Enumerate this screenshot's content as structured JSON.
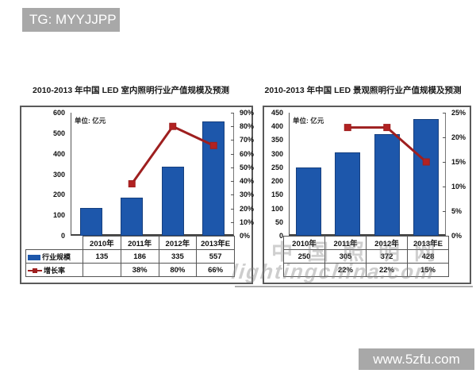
{
  "badges": {
    "top_left": "TG: MYYJJPP",
    "bottom_right": "www.5zfu.com",
    "bg": "#a8a8a8",
    "text_color": "#ffffff"
  },
  "watermark": {
    "line1": "中国照明网",
    "line2": "lightingchina.com"
  },
  "colors": {
    "bar": "#1d57ab",
    "line": "#9e1f1f",
    "line_marker": "#b22222",
    "badge_bg": "#a8a8a8"
  },
  "chart_data": [
    {
      "type": "bar",
      "title": "2010-2013 年中国 LED 室内照明行业产值规模及预测",
      "unit_label": "单位: 亿元",
      "categories": [
        "2010年",
        "2011年",
        "2012年",
        "2013年E"
      ],
      "series": [
        {
          "name": "行业规模",
          "type": "bar",
          "axis": "left",
          "values": [
            135,
            186,
            335,
            557
          ],
          "display": [
            "135",
            "186",
            "335",
            "557"
          ]
        },
        {
          "name": "增长率",
          "type": "line",
          "axis": "right",
          "values": [
            null,
            38,
            80,
            66
          ],
          "display": [
            "",
            "38%",
            "80%",
            "66%"
          ]
        }
      ],
      "left_axis": {
        "min": 0,
        "max": 600,
        "step": 100
      },
      "right_axis": {
        "min": 0,
        "max": 90,
        "step": 10,
        "suffix": "%"
      },
      "legend_in_table": true,
      "grid": false,
      "legend_position": "table-left"
    },
    {
      "type": "bar",
      "title": "2010-2013 年中国 LED 景观照明行业产值规模及预测",
      "unit_label": "单位: 亿元",
      "categories": [
        "2010年",
        "2011年",
        "2012年",
        "2013年E"
      ],
      "series": [
        {
          "name": "行业规模",
          "type": "bar",
          "axis": "left",
          "values": [
            250,
            305,
            372,
            428
          ],
          "display": [
            "250",
            "305",
            "372",
            "428"
          ]
        },
        {
          "name": "增长率",
          "type": "line",
          "axis": "right",
          "values": [
            null,
            22,
            22,
            15
          ],
          "display": [
            "",
            "22%",
            "22%",
            "15%"
          ]
        }
      ],
      "left_axis": {
        "min": 0,
        "max": 450,
        "step": 50
      },
      "right_axis": {
        "min": 0,
        "max": 25,
        "step": 5,
        "suffix": "%"
      },
      "legend_in_table": false,
      "grid": false,
      "legend_position": "none"
    }
  ]
}
